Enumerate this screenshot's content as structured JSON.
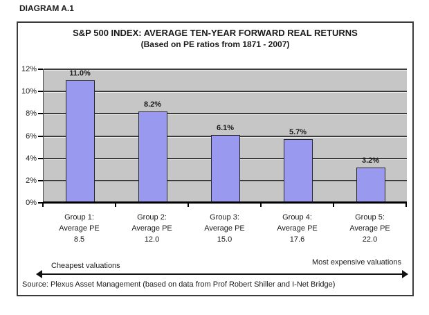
{
  "page": {
    "diagram_label": "DIAGRAM A.1"
  },
  "chart_data": {
    "type": "bar",
    "title": "S&P 500 INDEX: AVERAGE TEN-YEAR FORWARD REAL RETURNS",
    "subtitle": "(Based on PE ratios from 1871 - 2007)",
    "categories": [
      "Group 1: Average PE 8.5",
      "Group 2: Average PE 12.0",
      "Group 3: Average PE 15.0",
      "Group 4: Average PE 17.6",
      "Group 5: Average PE 22.0"
    ],
    "category_lines": [
      [
        "Group 1:",
        "Average PE",
        "8.5"
      ],
      [
        "Group 2:",
        "Average PE",
        "12.0"
      ],
      [
        "Group 3:",
        "Average PE",
        "15.0"
      ],
      [
        "Group 4:",
        "Average PE",
        "17.6"
      ],
      [
        "Group 5:",
        "Average PE",
        "22.0"
      ]
    ],
    "values": [
      11.0,
      8.2,
      6.1,
      5.7,
      3.2
    ],
    "value_labels": [
      "11.0%",
      "8.2%",
      "6.1%",
      "5.7%",
      "3.2%"
    ],
    "y_ticks": [
      "0%",
      "2%",
      "4%",
      "6%",
      "8%",
      "10%",
      "12%"
    ],
    "y_tick_values": [
      0,
      2,
      4,
      6,
      8,
      10,
      12
    ],
    "ylim": [
      0,
      12
    ],
    "grid": true,
    "legend": "none",
    "colors": {
      "bar_fill": "#9a99f0",
      "bar_border": "#26262e",
      "plot_background": "#c6c6c6",
      "gridline": "#3b3b3b"
    }
  },
  "footer": {
    "left_arrow_label": "Cheapest valuations",
    "right_arrow_label": "Most expensive valuations",
    "source": "Source: Plexus Asset Management (based on data from Prof Robert Shiller and I-Net Bridge)"
  }
}
